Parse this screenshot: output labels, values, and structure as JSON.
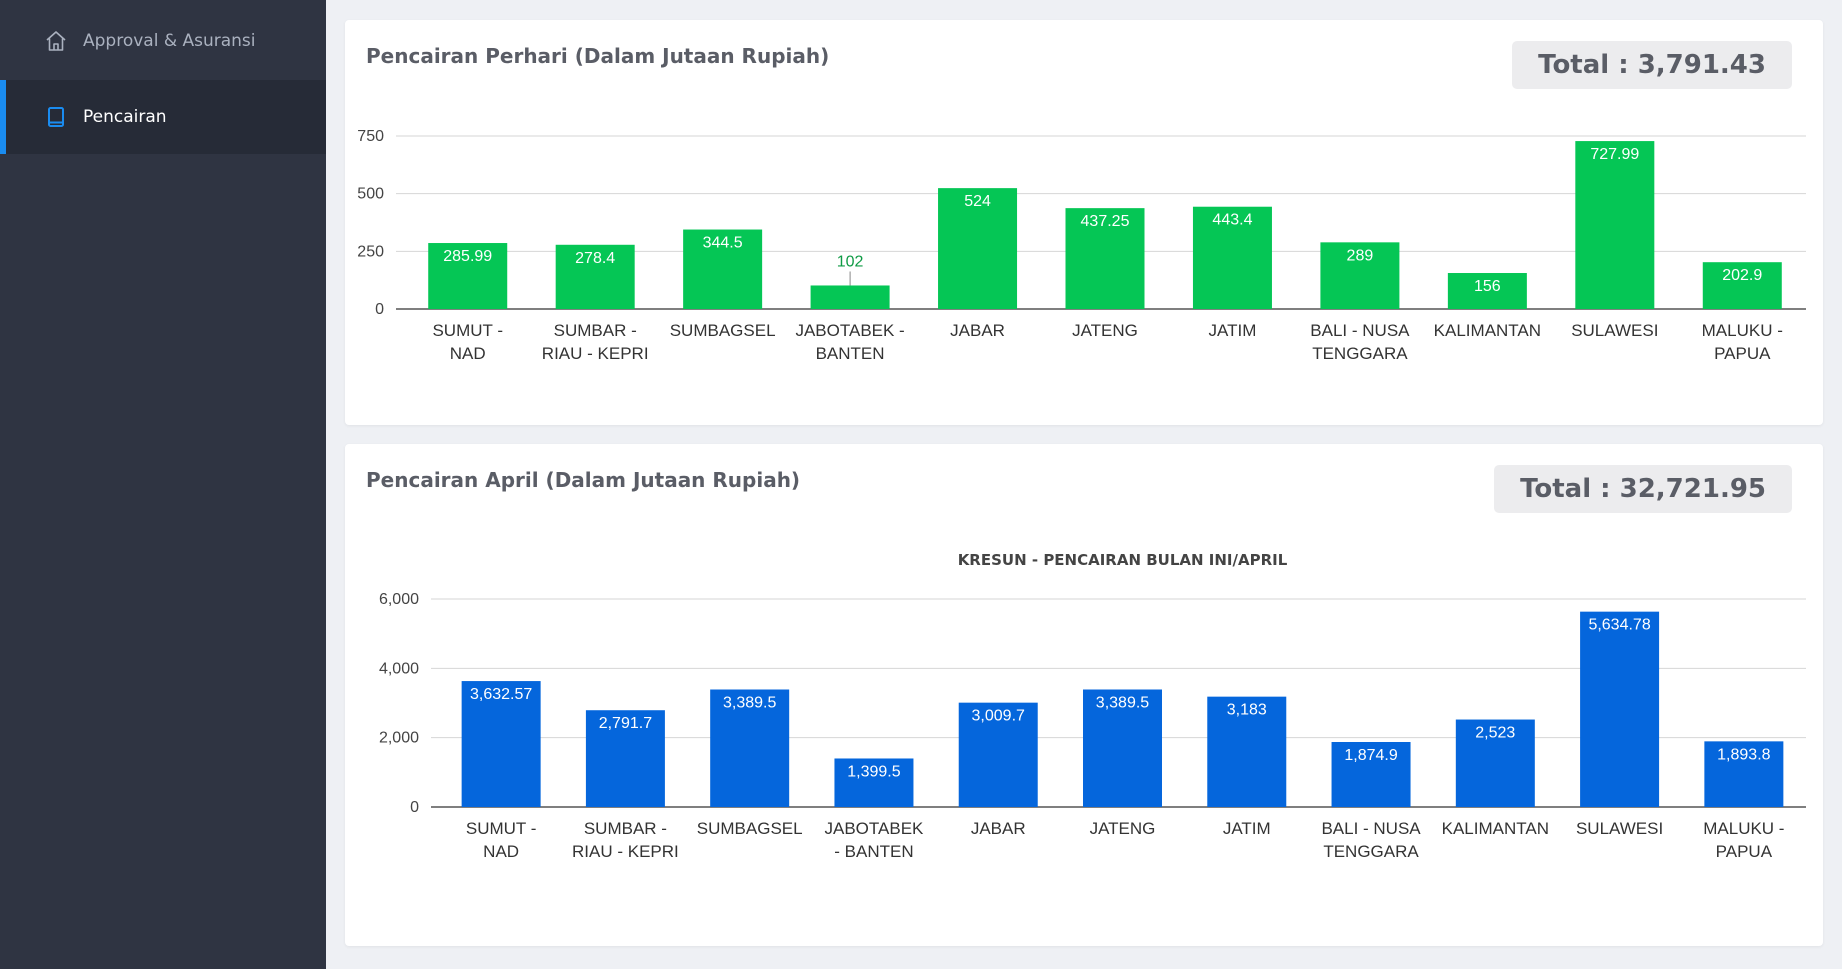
{
  "sidebar": {
    "items": [
      {
        "label": "Approval & Asuransi",
        "icon": "home-icon"
      },
      {
        "label": "Pencairan",
        "icon": "book-icon"
      }
    ]
  },
  "colors": {
    "daily_bar": "#05c655",
    "monthly_bar": "#0566dc",
    "accent": "#1a8cf0"
  },
  "daily": {
    "title": "Pencairan Perhari (Dalam Jutaan Rupiah)",
    "total": "Total : 3,791.43"
  },
  "monthly": {
    "title": "Pencairan April (Dalam Jutaan Rupiah)",
    "total": "Total : 32,721.95"
  },
  "chart_data": [
    {
      "type": "bar",
      "title": "",
      "categories": [
        [
          "SUMUT -",
          "NAD"
        ],
        [
          "SUMBAR -",
          "RIAU - KEPRI"
        ],
        [
          "SUMBAGSEL"
        ],
        [
          "JABOTABEK -",
          "BANTEN"
        ],
        [
          "JABAR"
        ],
        [
          "JATENG"
        ],
        [
          "JATIM"
        ],
        [
          "BALI - NUSA",
          "TENGGARA"
        ],
        [
          "KALIMANTAN"
        ],
        [
          "SULAWESI"
        ],
        [
          "MALUKU -",
          "PAPUA"
        ]
      ],
      "values": [
        285.99,
        278.4,
        344.5,
        102,
        524,
        437.25,
        443.4,
        289,
        156,
        727.99,
        202.9
      ],
      "labels": [
        "285.99",
        "278.4",
        "344.5",
        "102",
        "524",
        "437.25",
        "443.4",
        "289",
        "156",
        "727.99",
        "202.9"
      ],
      "yticks": [
        "0",
        "250",
        "500",
        "750"
      ],
      "ylim": [
        0,
        750
      ],
      "grid": true
    },
    {
      "type": "bar",
      "title": "KRESUN - PENCAIRAN BULAN INI/APRIL",
      "categories": [
        [
          "SUMUT -",
          "NAD"
        ],
        [
          "SUMBAR -",
          "RIAU - KEPRI"
        ],
        [
          "SUMBAGSEL"
        ],
        [
          "JABOTABEK",
          "- BANTEN"
        ],
        [
          "JABAR"
        ],
        [
          "JATENG"
        ],
        [
          "JATIM"
        ],
        [
          "BALI - NUSA",
          "TENGGARA"
        ],
        [
          "KALIMANTAN"
        ],
        [
          "SULAWESI"
        ],
        [
          "MALUKU -",
          "PAPUA"
        ]
      ],
      "values": [
        3632.57,
        2791.7,
        3389.5,
        1399.5,
        3009.7,
        3389.5,
        3183,
        1874.9,
        2523,
        5634.78,
        1893.8
      ],
      "labels": [
        "3,632.57",
        "2,791.7",
        "3,389.5",
        "1,399.5",
        "3,009.7",
        "3,389.5",
        "3,183",
        "1,874.9",
        "2,523",
        "5,634.78",
        "1,893.8"
      ],
      "yticks": [
        "0",
        "2,000",
        "4,000",
        "6,000"
      ],
      "ylim": [
        0,
        6000
      ],
      "grid": true
    }
  ]
}
